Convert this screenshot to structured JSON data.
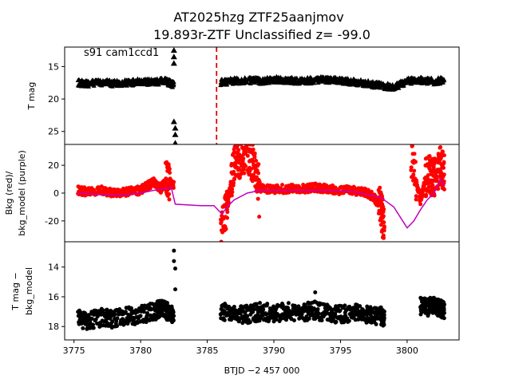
{
  "title_line1": "AT2025hzg  ZTF25aanjmov",
  "title_line2": "19.893r-ZTF Unclassified z= -99.0",
  "chart_data": [
    {
      "type": "scatter",
      "panel": "top",
      "ylabel": "T mag",
      "ylim": [
        27,
        12
      ],
      "y_inverted": true,
      "yticks": [
        15,
        20,
        25
      ],
      "annotation": "s91 cam1ccd1",
      "marker": "triangle",
      "series": [
        {
          "color": "#000000",
          "x": [
            3775.3,
            3776,
            3777,
            3778,
            3779,
            3780,
            3781,
            3781.8,
            3782.2,
            3782.5,
            3784.3,
            3786.0,
            3787,
            3788,
            3789,
            3790,
            3791,
            3792,
            3793,
            3794,
            3795,
            3796,
            3797,
            3798,
            3799,
            3800,
            3801,
            3802,
            3802.8
          ],
          "y": [
            17.5,
            17.6,
            17.4,
            17.6,
            17.5,
            17.3,
            17.4,
            17.2,
            17.5,
            17.8,
            17.7,
            17.4,
            17.2,
            17.1,
            17.2,
            17.0,
            17.1,
            17.2,
            17.1,
            17.0,
            17.2,
            17.4,
            17.6,
            17.9,
            18.2,
            17.2,
            17.1,
            17.3,
            17.0
          ]
        }
      ],
      "outliers": {
        "x": [
          3782.5,
          3782.5,
          3782.5,
          3782.5,
          3782.6,
          3782.6,
          3782.6
        ],
        "y": [
          12.5,
          13.5,
          14.5,
          23.5,
          24.5,
          25.5,
          26.8
        ]
      },
      "vline": {
        "x": 3785.7,
        "color": "#dd0000",
        "style": "dashed"
      }
    },
    {
      "type": "scatter",
      "panel": "middle",
      "ylabel_line1": "Bkg (red)/",
      "ylabel_line2": "bkg_model (purple)",
      "ylim": [
        -35,
        35
      ],
      "yticks": [
        20,
        0,
        -20
      ],
      "series": [
        {
          "name": "Bkg",
          "color": "#ff0000",
          "x": [
            3775.3,
            3776,
            3777,
            3778,
            3779,
            3780,
            3780.5,
            3781,
            3781.5,
            3782,
            3782.5,
            3786.0,
            3786.5,
            3787,
            3787.5,
            3788,
            3788.5,
            3789,
            3790,
            3791,
            3792,
            3793,
            3794,
            3795,
            3796,
            3797,
            3797.5,
            3798,
            3798.3,
            3800.3,
            3801,
            3801.5,
            3802,
            3802.5,
            3802.8
          ],
          "y": [
            2,
            1,
            2,
            0,
            1,
            2,
            5,
            8,
            3,
            10,
            5,
            -30,
            -10,
            20,
            25,
            28,
            20,
            3,
            3,
            3,
            3,
            4,
            3,
            2,
            2,
            0,
            -3,
            -10,
            -25,
            25,
            -5,
            15,
            10,
            20,
            15
          ]
        },
        {
          "name": "bkg_model",
          "color": "#c000c0",
          "type": "line",
          "x": [
            3775.3,
            3777,
            3779,
            3780,
            3781,
            3781.8,
            3782.3,
            3782.6,
            3784.5,
            3785.5,
            3786.1,
            3786.5,
            3787,
            3788,
            3789,
            3790,
            3792,
            3794,
            3796,
            3797,
            3798,
            3799,
            3800,
            3800.5,
            3801,
            3801.5,
            3802,
            3802.5,
            3802.8
          ],
          "y": [
            0,
            -1,
            -1,
            0,
            2,
            3,
            4,
            -8,
            -9,
            -9,
            -15,
            -10,
            -5,
            0,
            2,
            2,
            2,
            2,
            1,
            -1,
            -3,
            -10,
            -25,
            -20,
            -12,
            -5,
            0,
            10,
            5
          ]
        }
      ],
      "outliers": {
        "x": [
          3788.9
        ],
        "y": [
          -17
        ]
      }
    },
    {
      "type": "scatter",
      "panel": "bottom",
      "ylabel_line1": "T mag −",
      "ylabel_line2": "bkg_model",
      "xlabel": "BTJD −2 457 000",
      "ylim": [
        18.9,
        12.3
      ],
      "y_inverted": true,
      "yticks": [
        14,
        16,
        18
      ],
      "xlim": [
        3774.3,
        3803.9
      ],
      "xticks": [
        3775,
        3780,
        3785,
        3790,
        3795,
        3800
      ],
      "series": [
        {
          "color": "#000000",
          "x": [
            3775.3,
            3776,
            3777,
            3778,
            3779,
            3780,
            3781,
            3781.5,
            3782,
            3782.5,
            3786.0,
            3787,
            3788,
            3789,
            3790,
            3791,
            3792,
            3793,
            3794,
            3795,
            3796,
            3797,
            3798,
            3798.3,
            3801,
            3801.5,
            3802,
            3802.5,
            3802.8
          ],
          "y": [
            17.5,
            17.6,
            17.4,
            17.5,
            17.3,
            17.2,
            17.0,
            16.8,
            17.0,
            17.2,
            17.0,
            17.1,
            17.2,
            17.0,
            17.1,
            17.0,
            17.1,
            16.9,
            17.1,
            17.2,
            17.1,
            17.2,
            17.3,
            17.4,
            16.6,
            16.7,
            16.5,
            16.8,
            16.9
          ]
        }
      ],
      "outliers": {
        "x": [
          3782.5,
          3782.5,
          3782.6,
          3782.6,
          3793.1
        ],
        "y": [
          12.9,
          13.6,
          14.1,
          15.5,
          15.7
        ]
      }
    }
  ]
}
